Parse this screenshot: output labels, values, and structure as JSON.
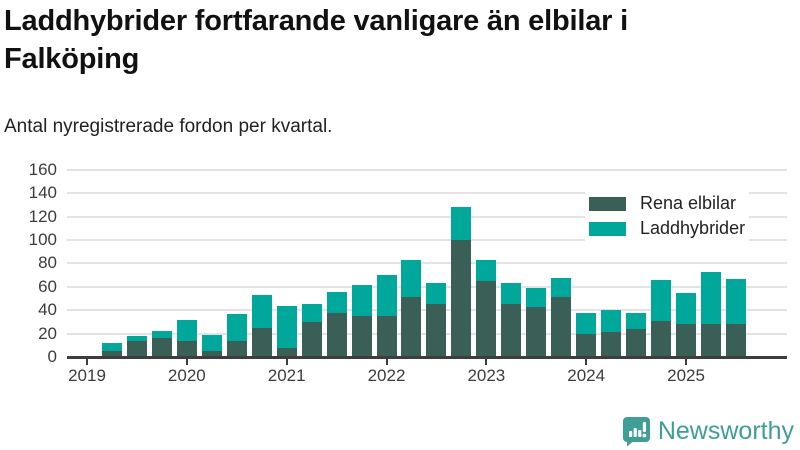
{
  "title": "Laddhybrider fortfarande vanligare än elbilar i Falköping",
  "subtitle": "Antal nyregistrerade fordon per kvartal.",
  "footer": {
    "brand": "Newsworthy",
    "logo_icon": "bar-chart-speech-bubble-icon"
  },
  "colors": {
    "elbilar": "#3a5f56",
    "laddhybrider": "#00a79b",
    "grid": "#e3e3e3",
    "axis": "#3d3d3d",
    "brand": "#3f9e96"
  },
  "chart_data": {
    "type": "bar",
    "stacked": true,
    "title": "Laddhybrider fortfarande vanligare än elbilar i Falköping",
    "subtitle": "Antal nyregistrerade fordon per kvartal.",
    "categories": [
      "2019 Q1",
      "2019 Q2",
      "2019 Q3",
      "2019 Q4",
      "2020 Q1",
      "2020 Q2",
      "2020 Q3",
      "2020 Q4",
      "2021 Q1",
      "2021 Q2",
      "2021 Q3",
      "2021 Q4",
      "2022 Q1",
      "2022 Q2",
      "2022 Q3",
      "2022 Q4",
      "2023 Q1",
      "2023 Q2",
      "2023 Q3",
      "2023 Q4",
      "2024 Q1",
      "2024 Q2",
      "2024 Q3",
      "2024 Q4",
      "2025 Q1",
      "2025 Q2",
      "2025 Q3"
    ],
    "x_tick_labels": [
      "2019",
      "2020",
      "2021",
      "2022",
      "2023",
      "2024",
      "2025"
    ],
    "series": [
      {
        "name": "Rena elbilar",
        "color": "#3a5f56",
        "values": [
          0,
          5,
          14,
          16,
          14,
          5,
          14,
          25,
          8,
          30,
          38,
          35,
          35,
          51,
          45,
          100,
          65,
          45,
          43,
          51,
          20,
          21,
          24,
          31,
          28,
          28,
          28
        ]
      },
      {
        "name": "Laddhybrider",
        "color": "#00a79b",
        "values": [
          0,
          7,
          4,
          6,
          18,
          14,
          23,
          28,
          36,
          15,
          18,
          27,
          35,
          32,
          18,
          28,
          18,
          18,
          16,
          17,
          18,
          19,
          14,
          35,
          27,
          45,
          39
        ]
      }
    ],
    "ylim": [
      0,
      160
    ],
    "ytick_step": 20,
    "grid": true,
    "legend_position": "top-right"
  }
}
